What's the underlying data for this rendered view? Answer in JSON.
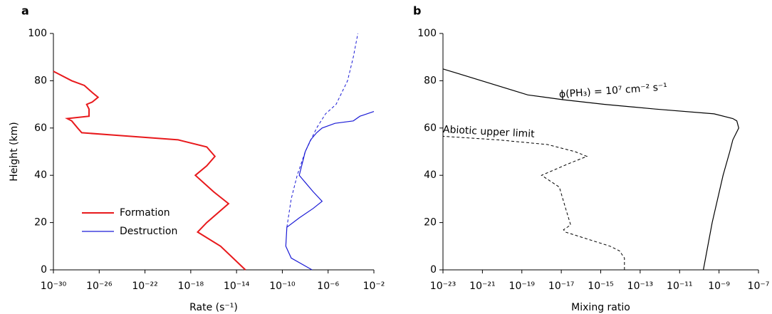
{
  "chart_data": [
    {
      "type": "line",
      "panel_label": "a",
      "x_label": "Rate (s⁻¹)",
      "y_label": "Height (km)",
      "xscale": "log",
      "xlim": [
        1e-30,
        0.01
      ],
      "xticks": [
        {
          "value": 1e-30,
          "label": "10⁻³⁰"
        },
        {
          "value": 1e-26,
          "label": "10⁻²⁶"
        },
        {
          "value": 1e-22,
          "label": "10⁻²²"
        },
        {
          "value": 1e-18,
          "label": "10⁻¹⁸"
        },
        {
          "value": 1e-14,
          "label": "10⁻¹⁴"
        },
        {
          "value": 1e-10,
          "label": "10⁻¹⁰"
        },
        {
          "value": 1e-06,
          "label": "10⁻⁶"
        },
        {
          "value": 0.01,
          "label": "10⁻²"
        }
      ],
      "ylim": [
        0,
        100
      ],
      "yticks": [
        0,
        20,
        40,
        60,
        80,
        100
      ],
      "legend": "lower left",
      "series": [
        {
          "name": "Formation",
          "color": "#e8191c",
          "dashed": false,
          "x": [
            6e-14,
            4e-16,
            4e-18,
            2.5e-17,
            2e-15,
            1e-16,
            2.5e-18,
            2.5e-17,
            1.3e-16,
            2.5e-17,
            8e-20,
            2e-25,
            3e-28,
            1.3e-28,
            4e-29,
            1.6e-29,
            1.3e-27,
            1.3e-27,
            8e-28,
            2.5e-27,
            8e-27,
            2.5e-27,
            5e-28,
            4e-29,
            1e-30
          ],
          "values": [
            0,
            10,
            16,
            20,
            28,
            33,
            40,
            44,
            48,
            52,
            55,
            57,
            58,
            60,
            63,
            64,
            65,
            68,
            70,
            71,
            73,
            75,
            78,
            80,
            84
          ]
        },
        {
          "name": "Destruction",
          "color": "#1b1bd6",
          "dashed": false,
          "x": [
            4e-08,
            6e-10,
            2e-10,
            2.5e-10,
            3e-09,
            5e-08,
            3e-07,
            5e-08,
            1e-08,
            3e-09,
            1e-08,
            3e-08,
            1e-07,
            3e-07,
            4e-06,
            0.00016,
            0.0006,
            0.01
          ],
          "values": [
            0,
            5,
            10,
            18,
            22,
            26,
            29,
            33,
            37,
            40,
            50,
            55,
            58,
            60,
            62,
            63,
            65,
            67
          ]
        },
        {
          "color": "#1b1bd6",
          "dashed": true,
          "x": [
            2.5e-10,
            6e-10,
            2e-09,
            1e-08,
            1e-07,
            6e-07,
            5e-06,
            5e-05,
            0.00016,
            0.0004
          ],
          "values": [
            18,
            30,
            40,
            50,
            60,
            66,
            70,
            80,
            90,
            100
          ]
        }
      ]
    },
    {
      "type": "line",
      "panel_label": "b",
      "x_label": "Mixing ratio",
      "xscale": "log",
      "xlim": [
        1e-23,
        1e-07
      ],
      "xticks": [
        {
          "value": 1e-23,
          "label": "10⁻²³"
        },
        {
          "value": 1e-21,
          "label": "10⁻²¹"
        },
        {
          "value": 1e-19,
          "label": "10⁻¹⁹"
        },
        {
          "value": 1e-17,
          "label": "10⁻¹⁷"
        },
        {
          "value": 1e-15,
          "label": "10⁻¹⁵"
        },
        {
          "value": 1e-13,
          "label": "10⁻¹³"
        },
        {
          "value": 1e-11,
          "label": "10⁻¹¹"
        },
        {
          "value": 1e-09,
          "label": "10⁻⁹"
        },
        {
          "value": 1e-07,
          "label": "10⁻⁷"
        }
      ],
      "ylim": [
        0,
        100
      ],
      "yticks": [
        0,
        20,
        40,
        60,
        80,
        100
      ],
      "annotations": [
        "ϕ(PH₃) = 10⁷ cm⁻² s⁻¹",
        "Abiotic upper limit"
      ],
      "series": [
        {
          "color": "#000000",
          "dashed": false,
          "x": [
            1.6e-10,
            4.5e-10,
            1.6e-09,
            3.5e-09,
            5e-09,
            1e-08,
            8e-09,
            5e-09,
            5.6e-10,
            6e-13,
            1.6e-15,
            1.2e-17,
            2e-19,
            1e-23
          ],
          "values": [
            0,
            20,
            40,
            50,
            55,
            60,
            63,
            64,
            66,
            68,
            70,
            72,
            74,
            85
          ]
        },
        {
          "color": "#000000",
          "dashed": true,
          "x": [
            1.6e-14,
            1.6e-14,
            9e-15,
            3e-15,
            1.6e-17,
            1.3e-17,
            3e-17,
            1.8e-17,
            8e-18,
            1e-18,
            2.5e-17,
            2e-16,
            5e-17,
            2e-18,
            6e-21,
            1e-23
          ],
          "values": [
            0,
            5,
            8,
            10,
            16,
            17,
            19,
            25,
            35,
            40,
            45,
            48,
            50,
            53,
            55,
            56.5
          ]
        }
      ]
    }
  ]
}
